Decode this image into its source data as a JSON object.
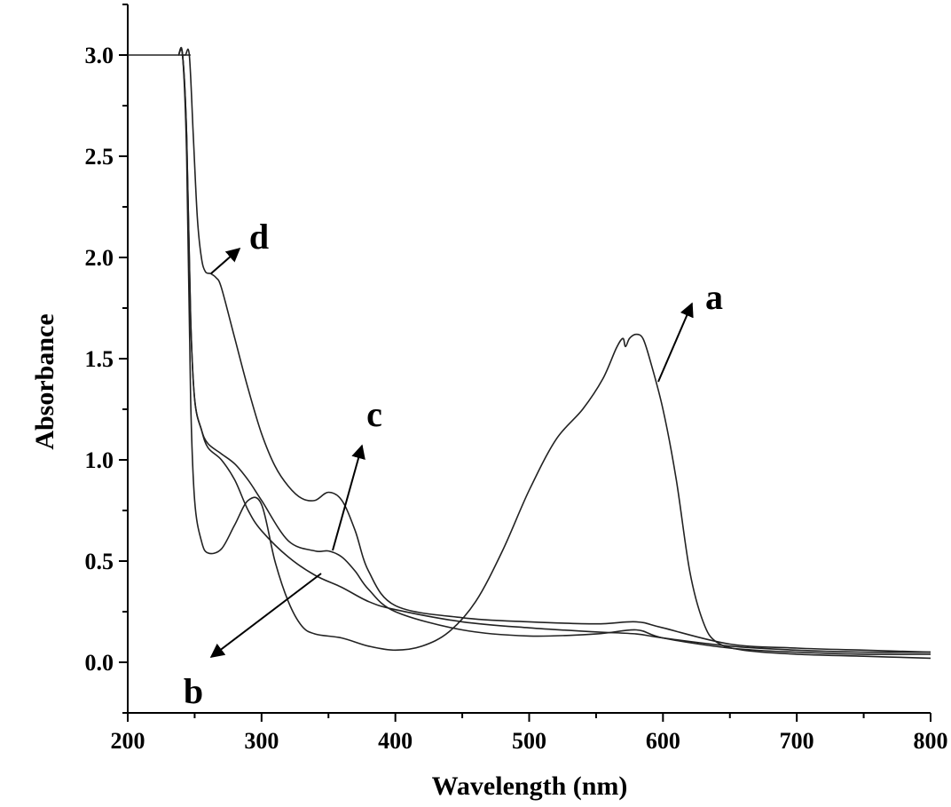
{
  "chart_data": {
    "type": "line",
    "xlabel": "Wavelength (nm)",
    "ylabel": "Absorbance",
    "xlim": [
      200,
      800
    ],
    "ylim": [
      -0.25,
      3.25
    ],
    "x_ticks": [
      "200",
      "300",
      "400",
      "500",
      "600",
      "700",
      "800"
    ],
    "y_ticks": [
      "0.0",
      "0.5",
      "1.0",
      "1.5",
      "2.0",
      "2.5",
      "3.0"
    ],
    "grid": false,
    "annotations": [
      "a",
      "b",
      "c",
      "d"
    ],
    "series": [
      {
        "name": "a",
        "x": [
          238,
          241,
          244,
          247,
          250,
          255,
          260,
          270,
          280,
          290,
          300,
          310,
          320,
          330,
          340,
          360,
          380,
          400,
          420,
          440,
          460,
          480,
          500,
          520,
          540,
          555,
          565,
          570,
          572,
          575,
          580,
          585,
          590,
          600,
          610,
          620,
          630,
          640,
          660,
          700,
          750,
          800
        ],
        "y": [
          3.0,
          3.0,
          2.5,
          1.3,
          0.8,
          0.6,
          0.54,
          0.56,
          0.68,
          0.8,
          0.78,
          0.5,
          0.3,
          0.18,
          0.14,
          0.12,
          0.08,
          0.06,
          0.08,
          0.15,
          0.3,
          0.55,
          0.85,
          1.1,
          1.25,
          1.4,
          1.55,
          1.6,
          1.56,
          1.6,
          1.62,
          1.6,
          1.5,
          1.25,
          0.9,
          0.45,
          0.2,
          0.1,
          0.06,
          0.04,
          0.03,
          0.02
        ]
      },
      {
        "name": "b",
        "x": [
          238,
          241,
          244,
          247,
          250,
          255,
          260,
          270,
          280,
          290,
          300,
          320,
          340,
          360,
          380,
          400,
          450,
          500,
          550,
          580,
          600,
          650,
          700,
          750,
          800
        ],
        "y": [
          3.0,
          3.0,
          2.6,
          1.7,
          1.3,
          1.15,
          1.06,
          1.0,
          0.9,
          0.75,
          0.65,
          0.52,
          0.43,
          0.37,
          0.3,
          0.26,
          0.2,
          0.17,
          0.15,
          0.14,
          0.12,
          0.08,
          0.06,
          0.05,
          0.05
        ]
      },
      {
        "name": "c",
        "x": [
          238,
          241,
          244,
          247,
          250,
          255,
          260,
          270,
          280,
          290,
          300,
          320,
          340,
          350,
          360,
          370,
          380,
          400,
          450,
          500,
          550,
          580,
          600,
          650,
          700,
          750,
          800
        ],
        "y": [
          3.0,
          3.0,
          2.6,
          1.7,
          1.3,
          1.15,
          1.08,
          1.03,
          0.98,
          0.9,
          0.8,
          0.6,
          0.55,
          0.55,
          0.52,
          0.45,
          0.36,
          0.25,
          0.16,
          0.13,
          0.14,
          0.16,
          0.12,
          0.07,
          0.05,
          0.04,
          0.04
        ]
      },
      {
        "name": "d",
        "x": [
          240,
          243,
          246,
          249,
          252,
          255,
          258,
          262,
          266,
          270,
          280,
          290,
          300,
          310,
          320,
          330,
          340,
          350,
          360,
          370,
          380,
          400,
          450,
          500,
          550,
          580,
          600,
          650,
          700,
          750,
          800
        ],
        "y": [
          3.0,
          3.0,
          3.0,
          2.6,
          2.2,
          2.0,
          1.93,
          1.92,
          1.9,
          1.85,
          1.6,
          1.35,
          1.13,
          0.97,
          0.87,
          0.81,
          0.8,
          0.84,
          0.8,
          0.65,
          0.45,
          0.28,
          0.22,
          0.2,
          0.19,
          0.2,
          0.17,
          0.09,
          0.07,
          0.06,
          0.05
        ]
      }
    ]
  }
}
